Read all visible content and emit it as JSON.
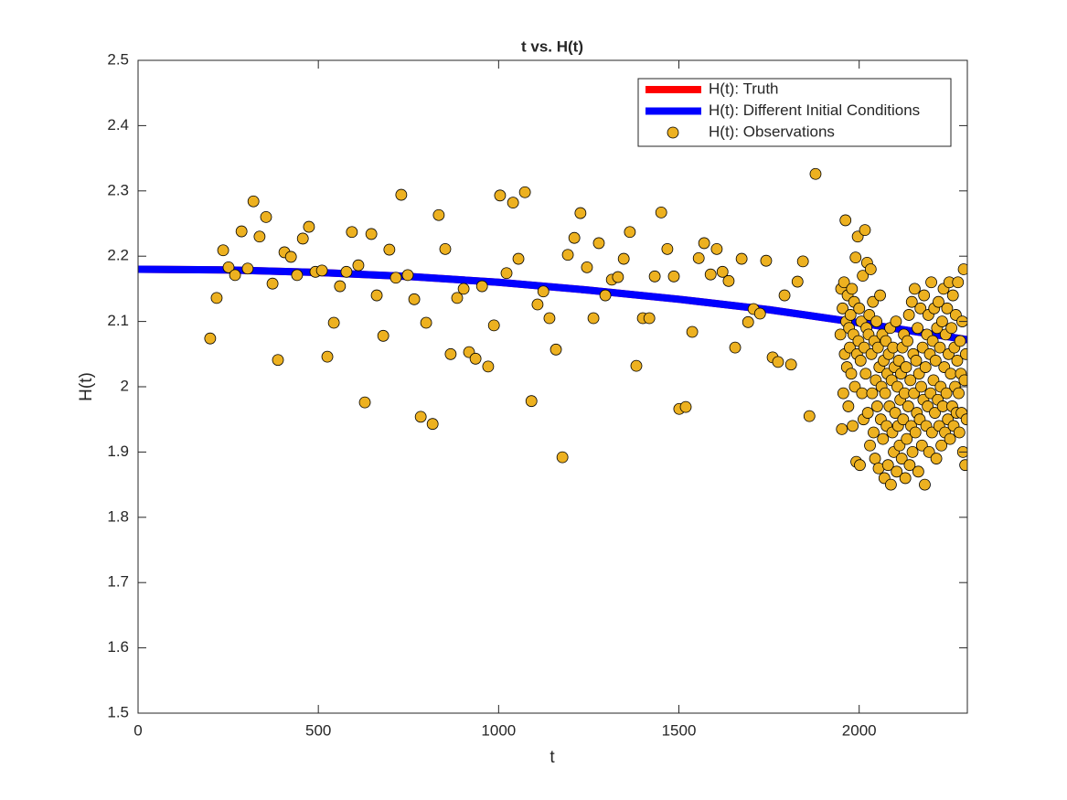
{
  "chart_data": {
    "type": "line",
    "title": "t vs. H(t)",
    "x_label": "t",
    "y_label": "H(t)",
    "xlim": [
      0,
      2300
    ],
    "ylim": [
      1.5,
      2.5
    ],
    "xticks": [
      0,
      500,
      1000,
      1500,
      2000
    ],
    "yticks": [
      1.5,
      1.6,
      1.7,
      1.8,
      1.9,
      2,
      2.1,
      2.2,
      2.3,
      2.4,
      2.5
    ],
    "legend": "northeast",
    "grid": false,
    "series": [
      {
        "name": "H(t): Truth",
        "style": "line",
        "color": "#ff0000",
        "x": [
          0,
          250,
          500,
          750,
          1000,
          1250,
          1500,
          1750,
          2000,
          2300
        ],
        "values": [
          2.18,
          2.179,
          2.175,
          2.169,
          2.16,
          2.148,
          2.134,
          2.118,
          2.098,
          2.072
        ]
      },
      {
        "name": "H(t): Different Initial Conditions",
        "style": "line",
        "color": "#0000ff",
        "x": [
          0,
          250,
          500,
          750,
          1000,
          1250,
          1500,
          1750,
          2000,
          2300
        ],
        "values": [
          2.18,
          2.179,
          2.175,
          2.169,
          2.16,
          2.148,
          2.134,
          2.118,
          2.098,
          2.072
        ]
      },
      {
        "name": "H(t): Observations",
        "style": "marker",
        "color": "#edb120",
        "x": [
          200,
          218,
          236,
          251,
          269,
          287,
          304,
          320,
          337,
          355,
          373,
          388,
          406,
          424,
          441,
          457,
          474,
          492,
          510,
          525,
          543,
          560,
          578,
          593,
          611,
          629,
          647,
          662,
          680,
          697,
          715,
          730,
          748,
          766,
          784,
          799,
          817,
          834,
          852,
          867,
          885,
          903,
          918,
          936,
          954,
          971,
          987,
          1004,
          1022,
          1040,
          1055,
          1073,
          1091,
          1108,
          1124,
          1141,
          1159,
          1177,
          1192,
          1210,
          1227,
          1245,
          1263,
          1278,
          1296,
          1314,
          1331,
          1347,
          1364,
          1382,
          1400,
          1418,
          1433,
          1451,
          1468,
          1486,
          1501,
          1519,
          1537,
          1555,
          1570,
          1588,
          1605,
          1621,
          1638,
          1656,
          1674,
          1692,
          1707,
          1725,
          1742,
          1760,
          1775,
          1793,
          1811,
          1829,
          1844,
          1862,
          1879,
          1948,
          1950,
          1952,
          1954,
          1956,
          1958,
          1960,
          1962,
          1964,
          1966,
          1968,
          1970,
          1972,
          1974,
          1976,
          1978,
          1980,
          1982,
          1984,
          1986,
          1988,
          1990,
          1992,
          1994,
          1996,
          1998,
          2000,
          2002,
          2004,
          2006,
          2008,
          2010,
          2012,
          2014,
          2016,
          2018,
          2020,
          2022,
          2024,
          2026,
          2028,
          2030,
          2032,
          2034,
          2036,
          2038,
          2040,
          2042,
          2044,
          2046,
          2048,
          2050,
          2052,
          2054,
          2056,
          2058,
          2060,
          2062,
          2064,
          2066,
          2068,
          2070,
          2072,
          2074,
          2076,
          2078,
          2080,
          2082,
          2084,
          2086,
          2088,
          2090,
          2092,
          2094,
          2096,
          2098,
          2100,
          2102,
          2104,
          2106,
          2108,
          2110,
          2112,
          2114,
          2116,
          2118,
          2120,
          2122,
          2124,
          2126,
          2128,
          2130,
          2132,
          2134,
          2136,
          2138,
          2140,
          2142,
          2144,
          2146,
          2148,
          2150,
          2152,
          2154,
          2156,
          2158,
          2160,
          2162,
          2164,
          2166,
          2168,
          2170,
          2172,
          2174,
          2176,
          2178,
          2180,
          2182,
          2184,
          2186,
          2188,
          2190,
          2192,
          2194,
          2196,
          2198,
          2200,
          2202,
          2204,
          2206,
          2208,
          2210,
          2212,
          2214,
          2216,
          2218,
          2220,
          2222,
          2224,
          2226,
          2228,
          2230,
          2232,
          2234,
          2236,
          2238,
          2240,
          2242,
          2244,
          2246,
          2248,
          2250,
          2252,
          2254,
          2256,
          2258,
          2260,
          2262,
          2264,
          2266,
          2268,
          2270,
          2272,
          2274,
          2276,
          2278,
          2280,
          2282,
          2284,
          2286,
          2288,
          2290,
          2292,
          2294,
          2296,
          2298
        ],
        "values": [
          2.074,
          2.136,
          2.209,
          2.183,
          2.171,
          2.238,
          2.181,
          2.284,
          2.23,
          2.26,
          2.158,
          2.041,
          2.206,
          2.199,
          2.171,
          2.227,
          2.245,
          2.176,
          2.178,
          2.046,
          2.098,
          2.154,
          2.176,
          2.237,
          2.186,
          1.976,
          2.234,
          2.14,
          2.078,
          2.21,
          2.167,
          2.294,
          2.171,
          2.134,
          1.954,
          2.098,
          1.943,
          2.263,
          2.211,
          2.05,
          2.136,
          2.15,
          2.053,
          2.043,
          2.154,
          2.031,
          2.094,
          2.293,
          2.174,
          2.282,
          2.196,
          2.298,
          1.978,
          2.126,
          2.146,
          2.105,
          2.057,
          1.892,
          2.202,
          2.228,
          2.266,
          2.183,
          2.105,
          2.22,
          2.14,
          2.164,
          2.168,
          2.196,
          2.237,
          2.032,
          2.105,
          2.105,
          2.169,
          2.267,
          2.211,
          2.169,
          1.966,
          1.969,
          2.084,
          2.197,
          2.22,
          2.172,
          2.211,
          2.176,
          2.162,
          2.06,
          2.196,
          2.099,
          2.119,
          2.112,
          2.193,
          2.045,
          2.038,
          2.14,
          2.034,
          2.161,
          2.192,
          1.955,
          2.326,
          2.08,
          2.15,
          1.935,
          2.12,
          1.99,
          2.16,
          2.05,
          2.255,
          2.1,
          2.03,
          2.14,
          1.97,
          2.09,
          2.06,
          2.11,
          2.02,
          2.15,
          1.94,
          2.08,
          2.13,
          2.0,
          2.198,
          1.885,
          2.05,
          2.23,
          2.07,
          2.12,
          1.88,
          2.04,
          2.1,
          1.99,
          2.17,
          1.95,
          2.06,
          2.24,
          2.02,
          2.09,
          2.19,
          1.96,
          2.08,
          2.11,
          1.91,
          2.18,
          2.05,
          1.99,
          2.13,
          1.93,
          2.07,
          1.89,
          2.01,
          2.1,
          1.97,
          2.06,
          1.875,
          2.03,
          2.14,
          1.95,
          2.0,
          2.08,
          1.92,
          2.04,
          1.86,
          1.99,
          2.07,
          1.94,
          2.02,
          1.88,
          2.05,
          1.97,
          2.09,
          1.85,
          2.01,
          1.93,
          2.06,
          1.9,
          2.03,
          1.96,
          2.1,
          1.87,
          2.0,
          1.94,
          2.04,
          1.91,
          1.98,
          2.02,
          1.89,
          2.06,
          1.95,
          2.08,
          1.99,
          1.86,
          2.03,
          1.92,
          2.07,
          1.97,
          2.11,
          1.88,
          2.01,
          1.94,
          2.13,
          1.9,
          2.05,
          1.99,
          2.15,
          1.93,
          2.04,
          1.96,
          2.09,
          1.87,
          2.02,
          1.95,
          2.12,
          2.0,
          1.91,
          2.06,
          1.98,
          2.14,
          1.85,
          2.03,
          1.94,
          2.08,
          1.97,
          2.11,
          1.9,
          2.05,
          1.99,
          2.16,
          1.93,
          2.07,
          2.01,
          2.12,
          1.96,
          2.04,
          1.89,
          2.09,
          1.98,
          2.13,
          1.94,
          2.06,
          2.0,
          1.91,
          2.1,
          1.97,
          2.15,
          2.03,
          1.93,
          2.08,
          1.99,
          2.12,
          1.95,
          2.05,
          2.16,
          1.92,
          2.02,
          2.09,
          1.97,
          2.14,
          1.94,
          2.06,
          2.0,
          2.11,
          1.96,
          2.04,
          2.16,
          1.99,
          1.93,
          2.07,
          2.02,
          1.96,
          2.1,
          1.9,
          2.18,
          2.01,
          1.88,
          2.05,
          1.95
        ]
      }
    ]
  }
}
